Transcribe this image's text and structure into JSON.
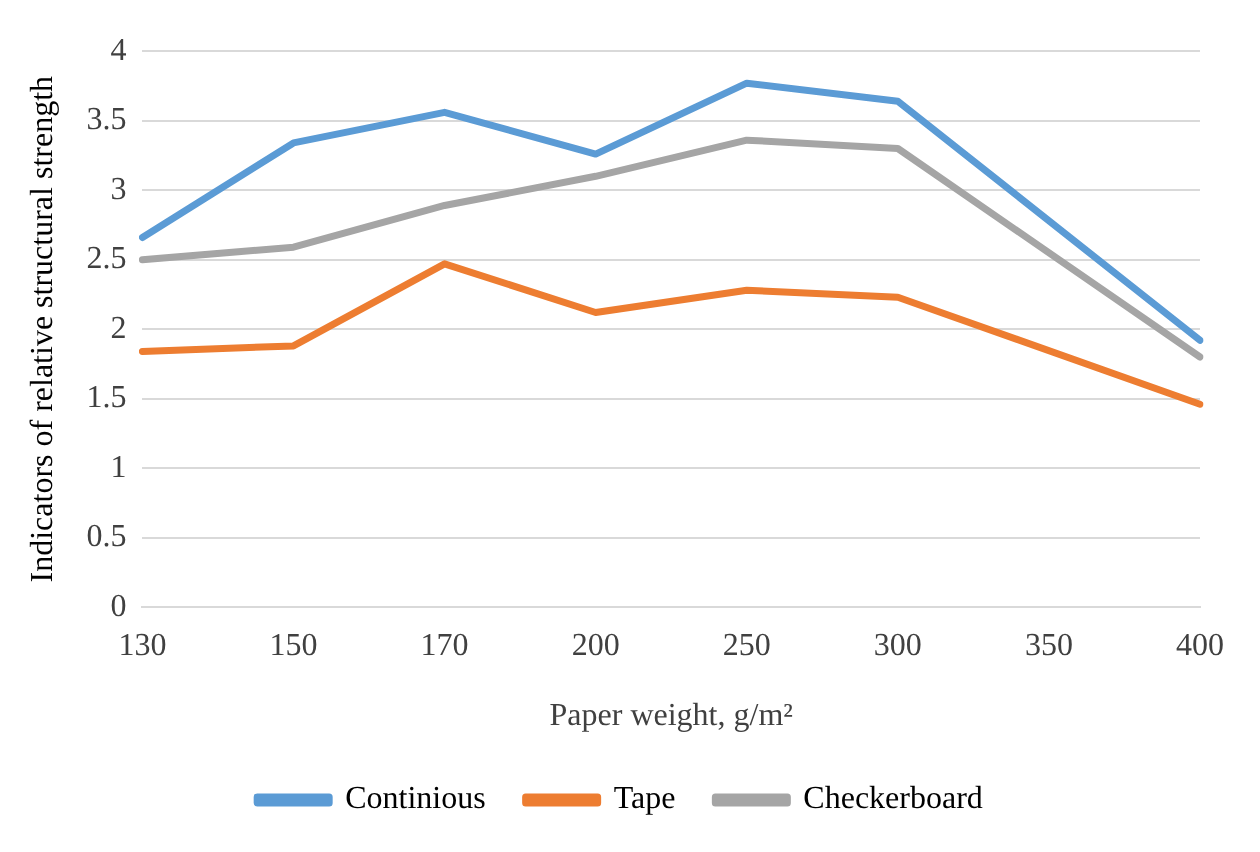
{
  "chart_data": {
    "type": "line",
    "xlabel": "Paper weight, g/m²",
    "ylabel": "Indicators of relative structural strength",
    "categories": [
      "130",
      "150",
      "170",
      "200",
      "250",
      "300",
      "350",
      "400"
    ],
    "series": [
      {
        "name": "Continious",
        "color": "#5b9bd5",
        "values": [
          2.66,
          3.34,
          3.56,
          3.26,
          3.77,
          3.64,
          null,
          1.92
        ]
      },
      {
        "name": "Tape",
        "color": "#ed7d31",
        "values": [
          1.84,
          1.88,
          2.47,
          2.12,
          2.28,
          2.23,
          null,
          1.46
        ]
      },
      {
        "name": "Checkerboard",
        "color": "#a5a5a5",
        "values": [
          2.5,
          2.59,
          2.89,
          3.1,
          3.36,
          3.3,
          null,
          1.8
        ]
      }
    ],
    "ylim": [
      0,
      4
    ],
    "yticks": [
      0,
      0.5,
      1,
      1.5,
      2,
      2.5,
      3,
      3.5,
      4
    ],
    "grid": "y",
    "legend": "bottom",
    "marker": "none",
    "line_style": "solid"
  }
}
